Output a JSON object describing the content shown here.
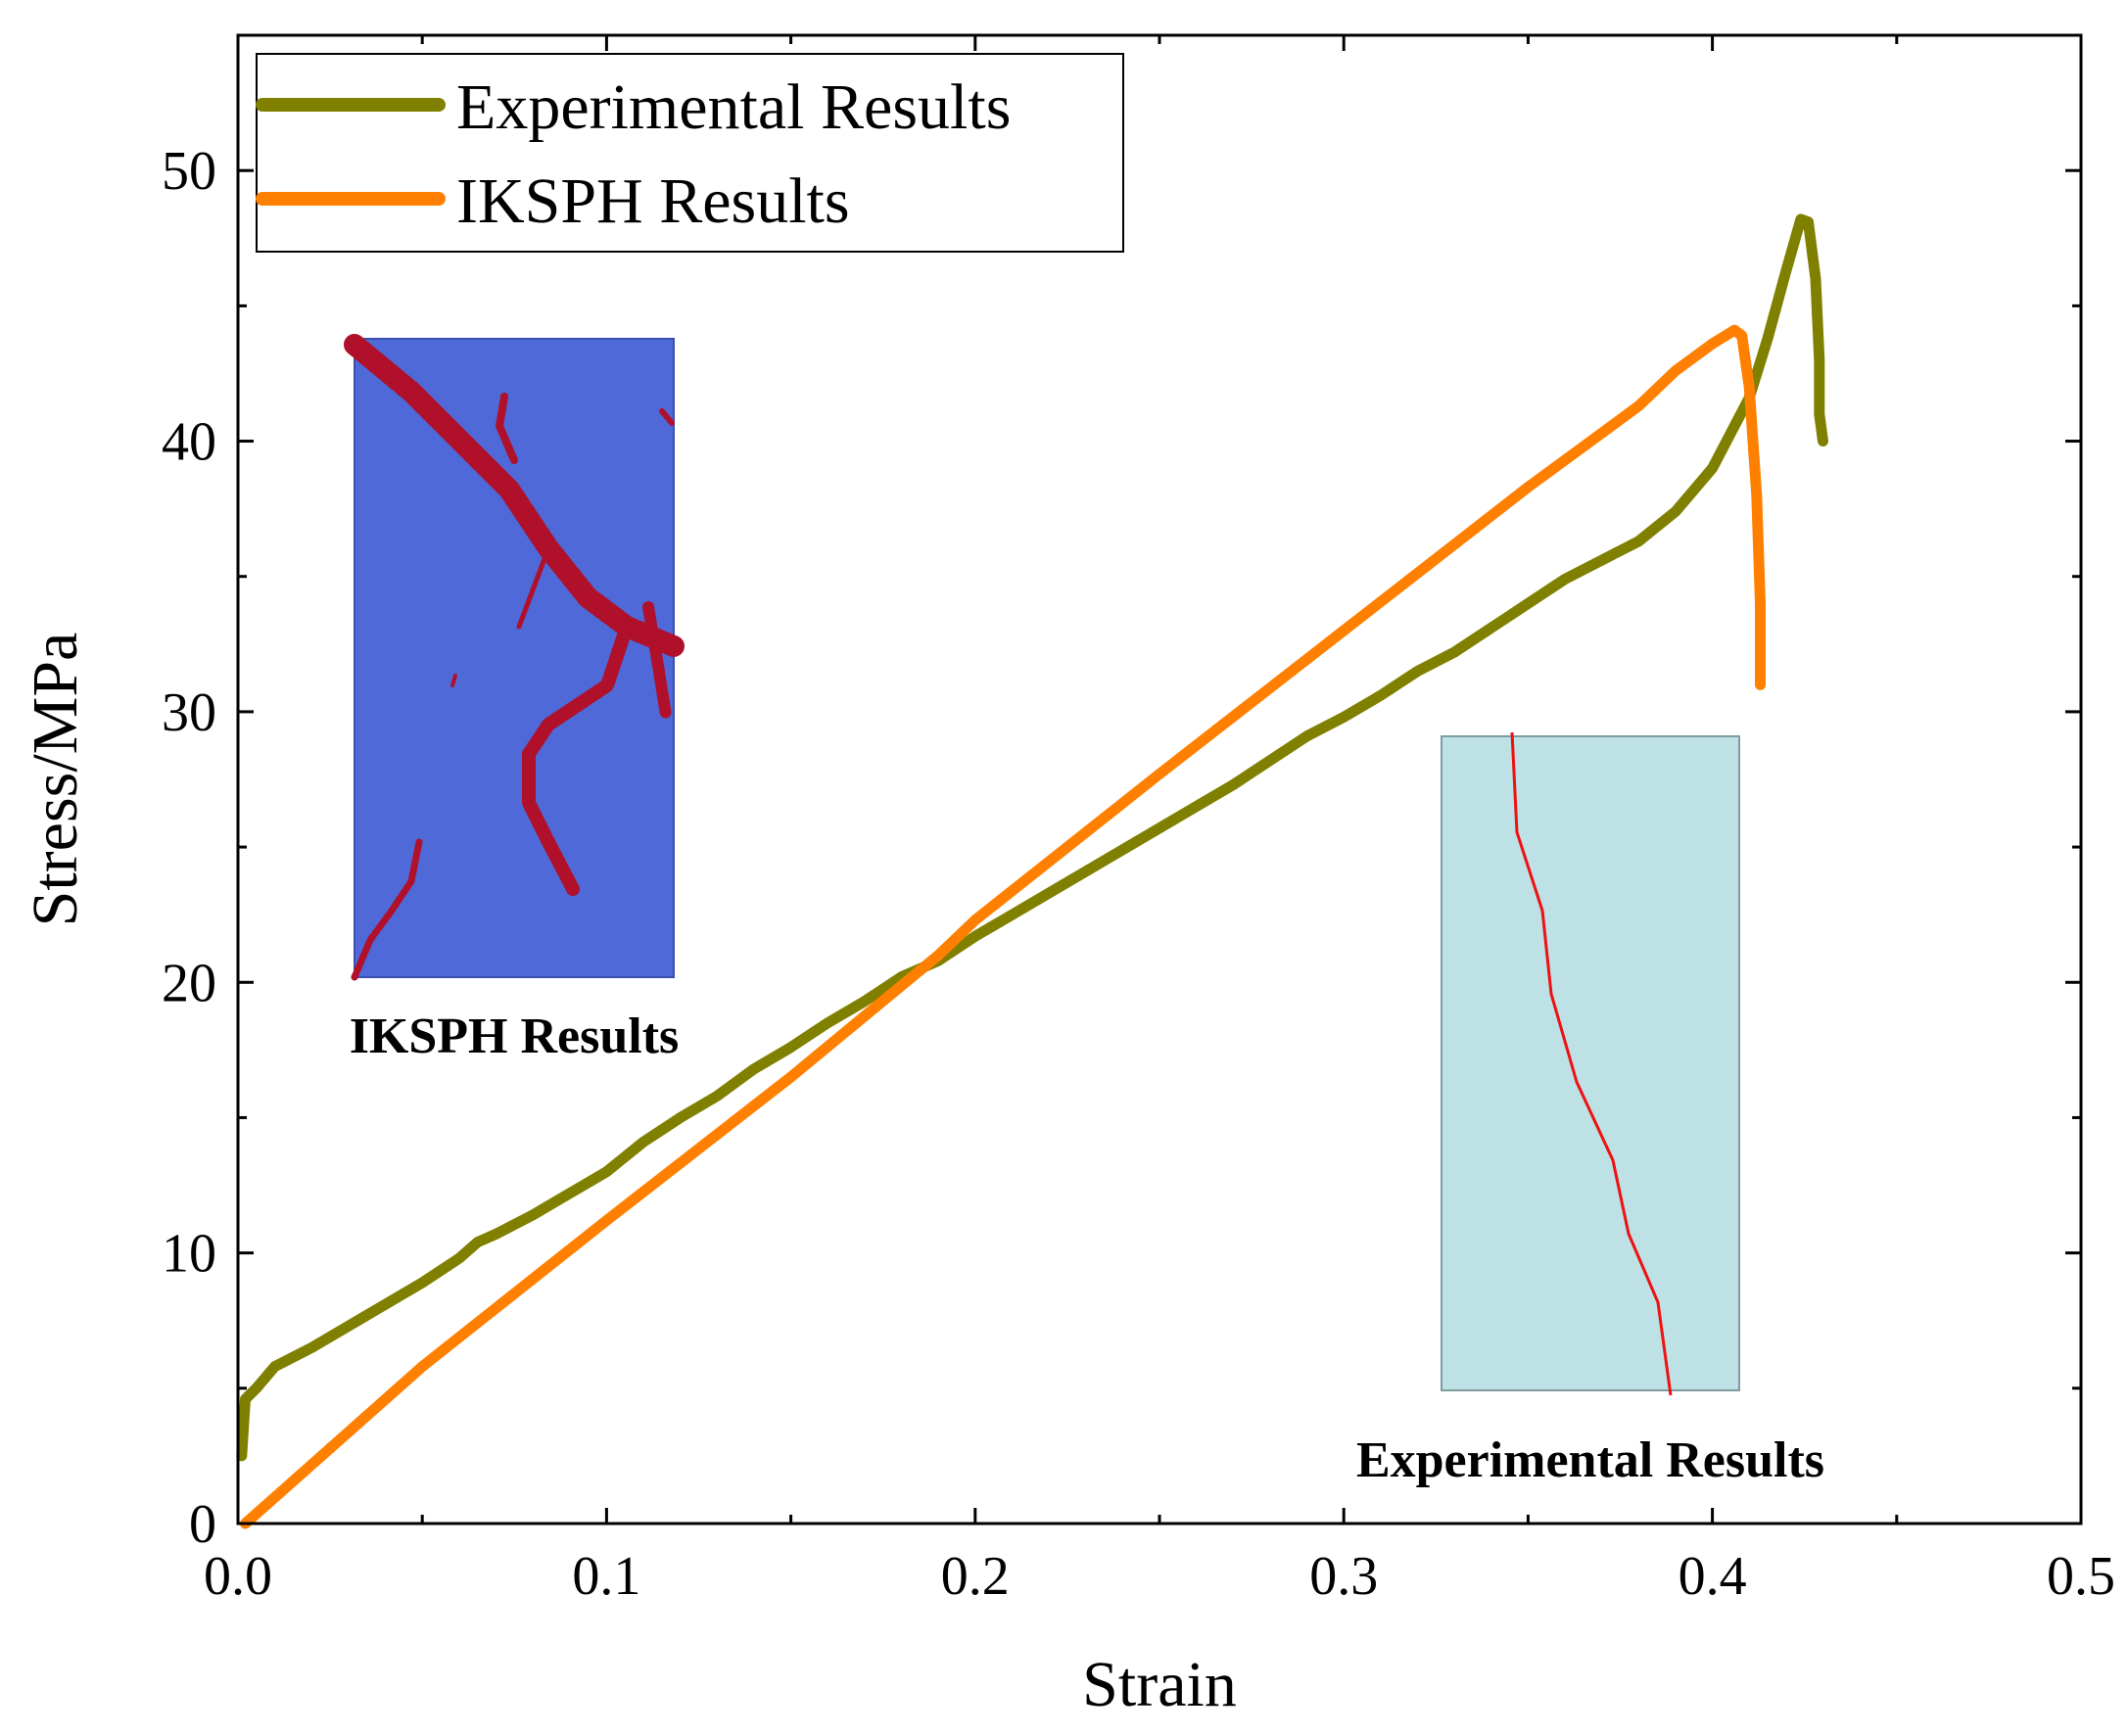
{
  "chart_data": {
    "type": "line",
    "xlabel": "Strain",
    "ylabel": "Stress/MPa",
    "xlim": [
      0,
      0.5
    ],
    "ylim": [
      0,
      55
    ],
    "x_ticks": [
      0.0,
      0.1,
      0.2,
      0.3,
      0.4,
      0.5
    ],
    "x_tick_labels": [
      "0.0",
      "0.1",
      "0.2",
      "0.3",
      "0.4",
      "0.5"
    ],
    "y_ticks": [
      0,
      10,
      20,
      30,
      40,
      50
    ],
    "y_tick_labels": [
      "0",
      "10",
      "20",
      "30",
      "40",
      "50"
    ],
    "legend_position": "top-left",
    "series": [
      {
        "name": "Experimental Results",
        "color": "#808000",
        "points": [
          [
            0.001,
            2.5
          ],
          [
            0.002,
            4.6
          ],
          [
            0.005,
            5.0
          ],
          [
            0.01,
            5.8
          ],
          [
            0.02,
            6.5
          ],
          [
            0.03,
            7.3
          ],
          [
            0.04,
            8.1
          ],
          [
            0.05,
            8.9
          ],
          [
            0.06,
            9.8
          ],
          [
            0.065,
            10.4
          ],
          [
            0.07,
            10.7
          ],
          [
            0.08,
            11.4
          ],
          [
            0.09,
            12.2
          ],
          [
            0.1,
            13.0
          ],
          [
            0.11,
            14.1
          ],
          [
            0.12,
            15.0
          ],
          [
            0.13,
            15.8
          ],
          [
            0.14,
            16.8
          ],
          [
            0.15,
            17.6
          ],
          [
            0.16,
            18.5
          ],
          [
            0.17,
            19.3
          ],
          [
            0.18,
            20.2
          ],
          [
            0.19,
            20.8
          ],
          [
            0.2,
            21.7
          ],
          [
            0.22,
            23.3
          ],
          [
            0.24,
            24.9
          ],
          [
            0.26,
            26.5
          ],
          [
            0.27,
            27.3
          ],
          [
            0.28,
            28.2
          ],
          [
            0.29,
            29.1
          ],
          [
            0.3,
            29.8
          ],
          [
            0.31,
            30.6
          ],
          [
            0.32,
            31.5
          ],
          [
            0.33,
            32.2
          ],
          [
            0.34,
            33.1
          ],
          [
            0.35,
            34.0
          ],
          [
            0.36,
            34.9
          ],
          [
            0.37,
            35.6
          ],
          [
            0.38,
            36.3
          ],
          [
            0.39,
            37.4
          ],
          [
            0.4,
            39.0
          ],
          [
            0.41,
            41.6
          ],
          [
            0.415,
            43.8
          ],
          [
            0.42,
            46.3
          ],
          [
            0.424,
            48.2
          ],
          [
            0.426,
            48.1
          ],
          [
            0.428,
            46.0
          ],
          [
            0.429,
            43.0
          ],
          [
            0.429,
            41.0
          ],
          [
            0.43,
            40.0
          ]
        ]
      },
      {
        "name": "IKSPH Results",
        "color": "#ff8000",
        "points": [
          [
            0.002,
            0.0
          ],
          [
            0.05,
            5.8
          ],
          [
            0.1,
            11.2
          ],
          [
            0.15,
            16.5
          ],
          [
            0.19,
            21.0
          ],
          [
            0.2,
            22.3
          ],
          [
            0.25,
            27.7
          ],
          [
            0.3,
            33.0
          ],
          [
            0.35,
            38.3
          ],
          [
            0.37,
            40.3
          ],
          [
            0.38,
            41.3
          ],
          [
            0.39,
            42.6
          ],
          [
            0.4,
            43.6
          ],
          [
            0.406,
            44.1
          ],
          [
            0.408,
            43.9
          ],
          [
            0.41,
            42.0
          ],
          [
            0.412,
            38.0
          ],
          [
            0.413,
            34.0
          ],
          [
            0.413,
            31.0
          ]
        ]
      }
    ],
    "insets": [
      {
        "caption": "IKSPH Results",
        "background": "#4f69d8",
        "crack_color": "#b0102a",
        "position": "upper-left"
      },
      {
        "caption": "Experimental Results",
        "background": "#bde1e5",
        "crack_color": "#ee1111",
        "position": "lower-right"
      }
    ]
  }
}
